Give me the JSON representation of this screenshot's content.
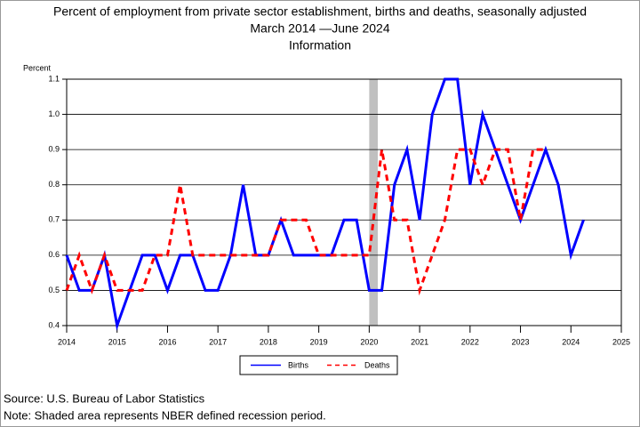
{
  "chart_data": {
    "type": "line",
    "title": [
      "Percent of employment from private sector establishment, births and deaths, seasonally adjusted",
      "March 2014 —June 2024",
      "Information"
    ],
    "ylabel": "Percent",
    "x": [
      2014,
      2014.25,
      2014.5,
      2014.75,
      2015,
      2015.25,
      2015.5,
      2015.75,
      2016,
      2016.25,
      2016.5,
      2016.75,
      2017,
      2017.25,
      2017.5,
      2017.75,
      2018,
      2018.25,
      2018.5,
      2018.75,
      2019,
      2019.25,
      2019.5,
      2019.75,
      2020,
      2020.25,
      2020.5,
      2020.75,
      2021,
      2021.25,
      2021.5,
      2021.75,
      2022,
      2022.25,
      2022.5,
      2022.75,
      2023,
      2023.25,
      2023.5,
      2023.75,
      2024,
      2024.25
    ],
    "series": [
      {
        "name": "Births",
        "color": "#0000ff",
        "dash": false,
        "values": [
          0.6,
          0.5,
          0.5,
          0.6,
          0.4,
          0.5,
          0.6,
          0.6,
          0.5,
          0.6,
          0.6,
          0.5,
          0.5,
          0.6,
          0.8,
          0.6,
          0.6,
          0.7,
          0.6,
          0.6,
          0.6,
          0.6,
          0.7,
          0.7,
          0.5,
          0.5,
          0.8,
          0.9,
          0.7,
          1.0,
          1.1,
          1.1,
          0.8,
          1.0,
          0.9,
          0.8,
          0.7,
          0.8,
          0.9,
          0.8,
          0.6,
          0.7
        ]
      },
      {
        "name": "Deaths",
        "color": "#ff0000",
        "dash": true,
        "values": [
          0.5,
          0.6,
          0.5,
          0.6,
          0.5,
          0.5,
          0.5,
          0.6,
          0.6,
          0.8,
          0.6,
          0.6,
          0.6,
          0.6,
          0.6,
          0.6,
          0.6,
          0.7,
          0.7,
          0.7,
          0.6,
          0.6,
          0.6,
          0.6,
          0.6,
          0.9,
          0.7,
          0.7,
          0.5,
          0.6,
          0.7,
          0.9,
          0.9,
          0.8,
          0.9,
          0.9,
          0.7,
          0.9,
          0.9,
          null,
          null,
          null
        ]
      }
    ],
    "xlim": [
      2014,
      2025
    ],
    "xticks": [
      2014,
      2015,
      2016,
      2017,
      2018,
      2019,
      2020,
      2021,
      2022,
      2023,
      2024,
      2025
    ],
    "ylim": [
      0.4,
      1.1
    ],
    "yticks": [
      0.4,
      0.5,
      0.6,
      0.7,
      0.8,
      0.9,
      {
        "value": 1,
        "label": "1.0"
      },
      1.1
    ],
    "grid": true,
    "recession": [
      2020,
      2020.17
    ],
    "recession_color": "#c0c0c0",
    "legend": "bottom",
    "notes": [
      "Source: U.S. Bureau of Labor Statistics",
      "Note: Shaded area represents NBER defined recession period."
    ]
  }
}
